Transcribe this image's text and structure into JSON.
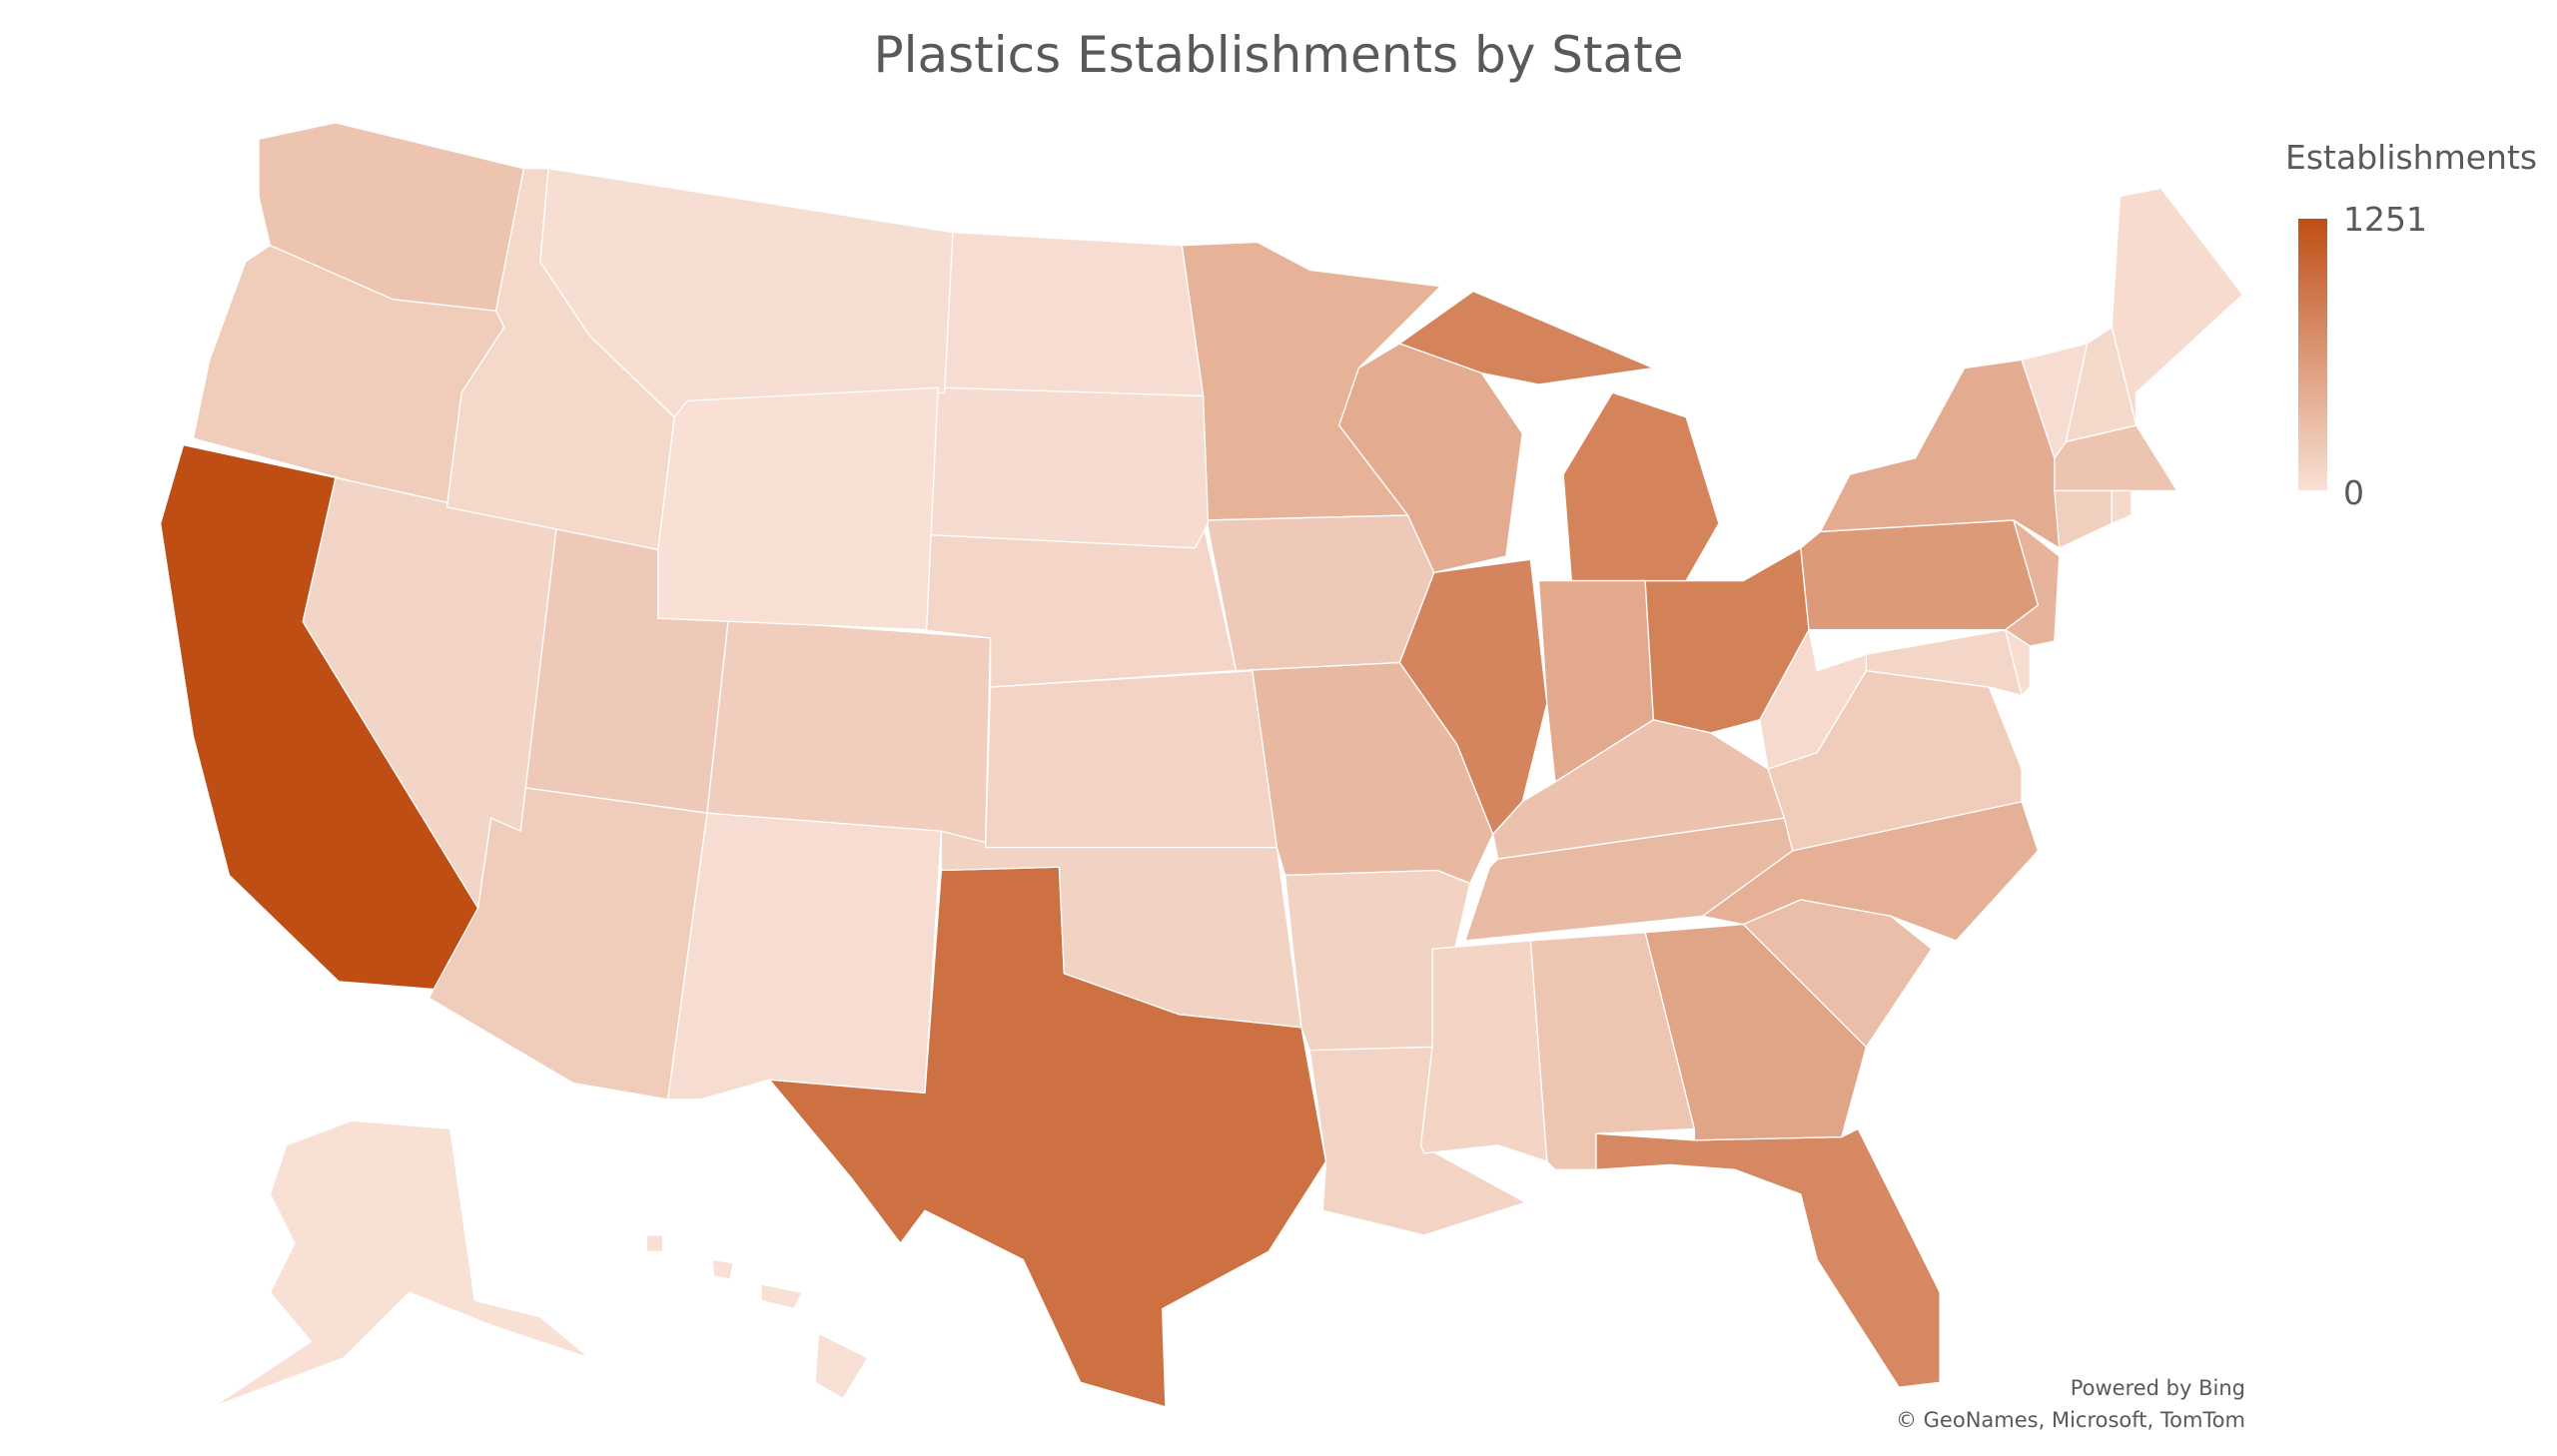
{
  "title": "Plastics Establishments by State",
  "legend": {
    "title": "Establishments",
    "max_label": "1251",
    "min_label": "0",
    "color_min": "#F8E1D6",
    "color_max": "#BF4E15"
  },
  "credits": {
    "line1": "Powered by Bing",
    "line2": "© GeoNames, Microsoft, TomTom"
  },
  "chart_data": {
    "type": "choropleth",
    "title": "Plastics Establishments by State",
    "legend_title": "Establishments",
    "range": [
      0,
      1251
    ],
    "legend_placement": "top-right",
    "states": [
      {
        "state": "CA",
        "value": 1251
      },
      {
        "state": "TX",
        "value": 950
      },
      {
        "state": "OH",
        "value": 820
      },
      {
        "state": "MI",
        "value": 800
      },
      {
        "state": "IL",
        "value": 780
      },
      {
        "state": "FL",
        "value": 760
      },
      {
        "state": "PA",
        "value": 600
      },
      {
        "state": "GA",
        "value": 520
      },
      {
        "state": "IN",
        "value": 480
      },
      {
        "state": "WI",
        "value": 460
      },
      {
        "state": "NY",
        "value": 450
      },
      {
        "state": "NC",
        "value": 420
      },
      {
        "state": "MN",
        "value": 400
      },
      {
        "state": "NJ",
        "value": 380
      },
      {
        "state": "MO",
        "value": 350
      },
      {
        "state": "TN",
        "value": 330
      },
      {
        "state": "SC",
        "value": 300
      },
      {
        "state": "KY",
        "value": 260
      },
      {
        "state": "WA",
        "value": 250
      },
      {
        "state": "MA",
        "value": 250
      },
      {
        "state": "AL",
        "value": 240
      },
      {
        "state": "UT",
        "value": 200
      },
      {
        "state": "IA",
        "value": 200
      },
      {
        "state": "AZ",
        "value": 180
      },
      {
        "state": "OR",
        "value": 180
      },
      {
        "state": "VA",
        "value": 180
      },
      {
        "state": "CO",
        "value": 170
      },
      {
        "state": "CT",
        "value": 150
      },
      {
        "state": "AR",
        "value": 130
      },
      {
        "state": "OK",
        "value": 130
      },
      {
        "state": "KS",
        "value": 120
      },
      {
        "state": "LA",
        "value": 120
      },
      {
        "state": "MS",
        "value": 110
      },
      {
        "state": "NV",
        "value": 100
      },
      {
        "state": "NE",
        "value": 90
      },
      {
        "state": "MD",
        "value": 90
      },
      {
        "state": "NH",
        "value": 80
      },
      {
        "state": "ID",
        "value": 80
      },
      {
        "state": "RI",
        "value": 70
      },
      {
        "state": "WV",
        "value": 60
      },
      {
        "state": "ME",
        "value": 50
      },
      {
        "state": "SD",
        "value": 40
      },
      {
        "state": "VT",
        "value": 30
      },
      {
        "state": "DE",
        "value": 30
      },
      {
        "state": "ND",
        "value": 30
      },
      {
        "state": "NM",
        "value": 30
      },
      {
        "state": "MT",
        "value": 25
      },
      {
        "state": "WY",
        "value": 10
      },
      {
        "state": "AK",
        "value": 10
      },
      {
        "state": "HI",
        "value": 5
      }
    ]
  }
}
